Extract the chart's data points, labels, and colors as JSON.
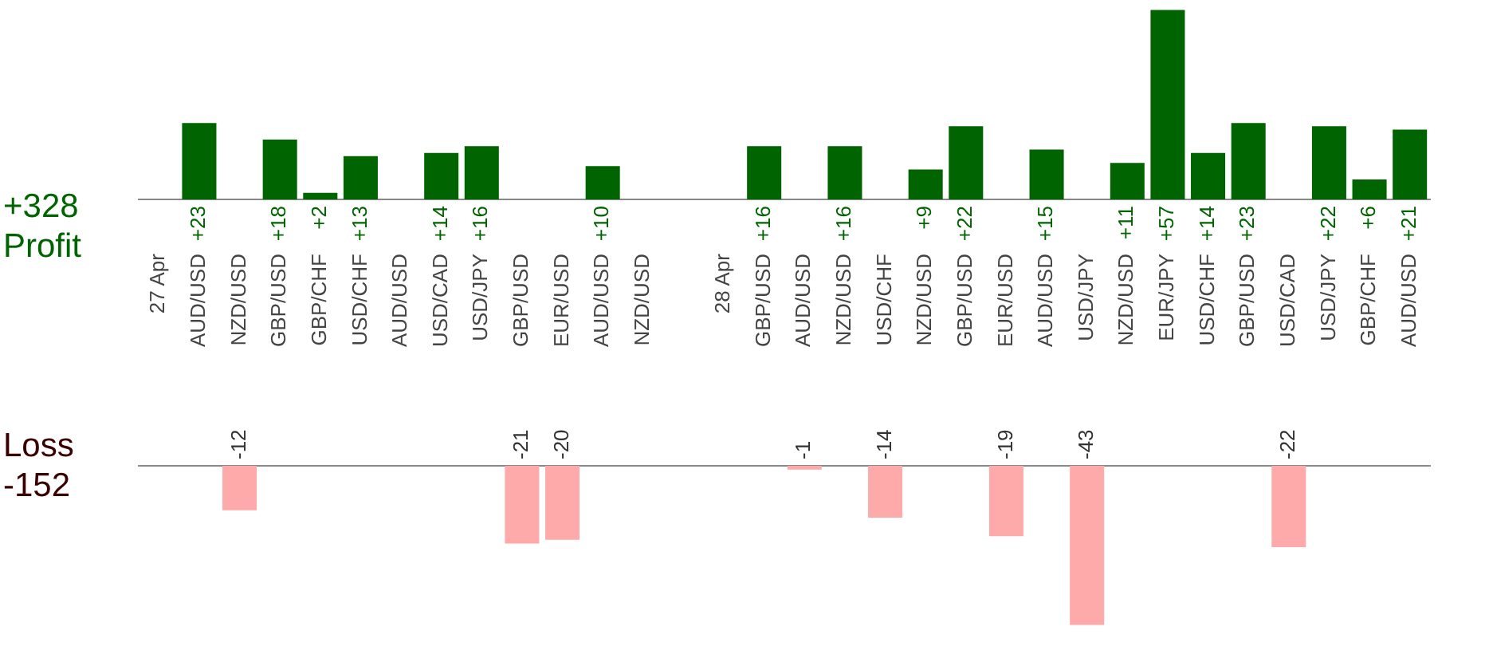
{
  "chart_data": [
    {
      "type": "bar",
      "annotations": [
        "+328",
        "Profit"
      ],
      "tick_labels": "x",
      "color": "#006400",
      "categories": [
        "27 Apr",
        "AUD/USD",
        "NZD/USD",
        "GBP/USD",
        "GBP/CHF",
        "USD/CHF",
        "AUD/USD",
        "USD/CAD",
        "USD/JPY",
        "GBP/USD",
        "EUR/USD",
        "AUD/USD",
        "NZD/USD",
        null,
        "28 Apr",
        "GBP/USD",
        "AUD/USD",
        "NZD/USD",
        "USD/CHF",
        "NZD/USD",
        "GBP/USD",
        "EUR/USD",
        "AUD/USD",
        "USD/JPY",
        "NZD/USD",
        "EUR/JPY",
        "USD/CHF",
        "GBP/USD",
        "USD/CAD",
        "USD/JPY",
        "GBP/CHF",
        "AUD/USD"
      ],
      "values": [
        null,
        23,
        null,
        18,
        2,
        13,
        null,
        14,
        16,
        null,
        null,
        10,
        null,
        null,
        null,
        16,
        null,
        16,
        null,
        9,
        22,
        null,
        15,
        null,
        11,
        57,
        14,
        23,
        null,
        22,
        6,
        21
      ],
      "value_labels": [
        null,
        "+23",
        null,
        "+18",
        "+2",
        "+13",
        null,
        "+14",
        "+16",
        null,
        null,
        "+10",
        null,
        null,
        null,
        "+16",
        null,
        "+16",
        null,
        "+9",
        "+22",
        null,
        "+15",
        null,
        "+11",
        "+57",
        "+14",
        "+23",
        null,
        "+22",
        "+6",
        "+21"
      ]
    },
    {
      "type": "bar",
      "annotations": [
        "Loss",
        "-152"
      ],
      "tick_labels": false,
      "color": "#ffaaaa",
      "values": [
        null,
        null,
        -12,
        null,
        null,
        null,
        null,
        null,
        null,
        -21,
        -20,
        null,
        null,
        null,
        null,
        null,
        -1,
        null,
        -14,
        null,
        null,
        -19,
        null,
        -43,
        null,
        null,
        null,
        null,
        -22,
        null,
        null,
        null
      ],
      "data_labels": true
    }
  ]
}
